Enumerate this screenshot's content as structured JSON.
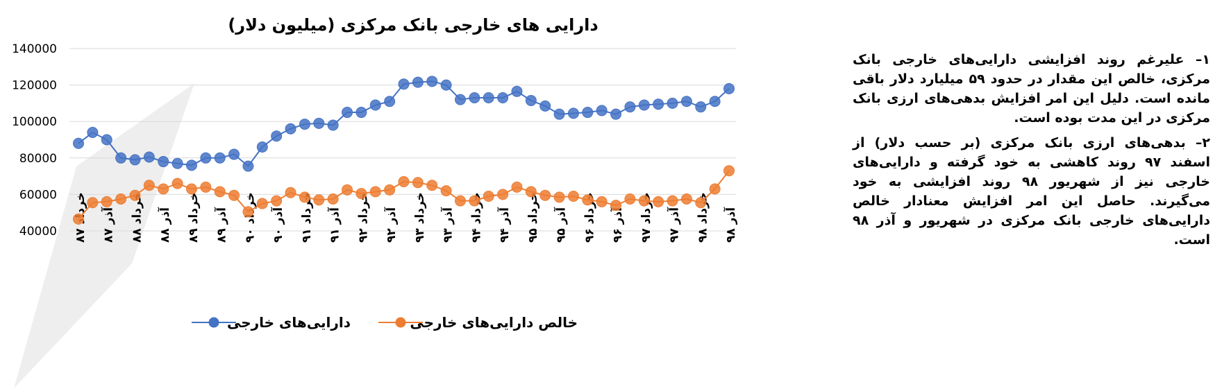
{
  "notes": {
    "paragraph_1": "۱– علیرغم روند افزایشی دارایی‌های خارجی بانک مرکزی، خالص این مقدار در حدود ۵۹ میلیارد دلار باقی مانده است. دلیل این امر افزایش بدهی‌های ارزی بانک مرکزی در این مدت بوده است.",
    "paragraph_2": "۲– بدهی‌های ارزی بانک مرکزی (بر حسب دلار) از اسفند ۹۷ روند کاهشی به خود گرفته و دارایی‌های خارجی نیز از شهریور ۹۸ روند افزایشی به خود می‌گیرند. حاصل این امر افزایش معنادار خالص دارایی‌های خارجی بانک مرکزی در شهریور و آذر ۹۸ است."
  },
  "chart_data": {
    "type": "line",
    "title": "دارایی های خارجی بانک مرکزی (میلیون دلار)",
    "xlabel": "",
    "ylabel": "",
    "ylim": [
      40000,
      140000
    ],
    "yticks": [
      "140000",
      "120000",
      "100000",
      "80000",
      "60000",
      "40000"
    ],
    "grid": true,
    "legend_position": "bottom",
    "categories": [
      "خرداد ۸۷",
      "",
      "آذر ۸۷",
      "",
      "خرداد ۸۸",
      "",
      "آذر ۸۸",
      "",
      "خرداد ۸۹",
      "",
      "آذر ۸۹",
      "",
      "خرداد ۹۰",
      "",
      "آذر ۹۰",
      "",
      "خرداد ۹۱",
      "",
      "آذر ۹۱",
      "",
      "خرداد ۹۲",
      "",
      "آذر ۹۲",
      "",
      "خرداد ۹۳",
      "",
      "آذر ۹۳",
      "",
      "خرداد ۹۴",
      "",
      "آذر ۹۴",
      "",
      "خرداد ۹۵",
      "",
      "آذر ۹۵",
      "",
      "خرداد ۹۶",
      "",
      "آذر ۹۶",
      "",
      "خرداد ۹۷",
      "",
      "آذر ۹۷",
      "",
      "خرداد ۹۸",
      "",
      "آذر ۹۸"
    ],
    "series": [
      {
        "name": "دارایی‌های خارجی",
        "color": "#4472C4",
        "values": [
          88000,
          94000,
          90000,
          80000,
          79000,
          80500,
          78000,
          77000,
          76000,
          80000,
          80000,
          82000,
          75500,
          86000,
          92000,
          96000,
          98500,
          99000,
          98000,
          105000,
          105000,
          109000,
          111000,
          120500,
          121500,
          122000,
          120000,
          112000,
          113000,
          113000,
          113000,
          116500,
          111500,
          108500,
          104000,
          104500,
          105000,
          106000,
          104000,
          108000,
          109000,
          109500,
          110000,
          111000,
          108000,
          111000,
          118000
        ]
      },
      {
        "name": "خالص دارایی‌های خارجی",
        "color": "#ED7D31",
        "values": [
          46500,
          55500,
          56000,
          57500,
          59500,
          65000,
          63000,
          66000,
          63000,
          64000,
          61500,
          59500,
          50500,
          55000,
          56500,
          61000,
          58500,
          57000,
          57500,
          62500,
          60500,
          61500,
          62500,
          67000,
          66500,
          65000,
          62000,
          56500,
          56500,
          59000,
          60000,
          64000,
          61500,
          59500,
          58500,
          59000,
          57000,
          56000,
          54000,
          57500,
          56500,
          56000,
          56500,
          57500,
          55500,
          63000,
          73000
        ]
      }
    ]
  }
}
